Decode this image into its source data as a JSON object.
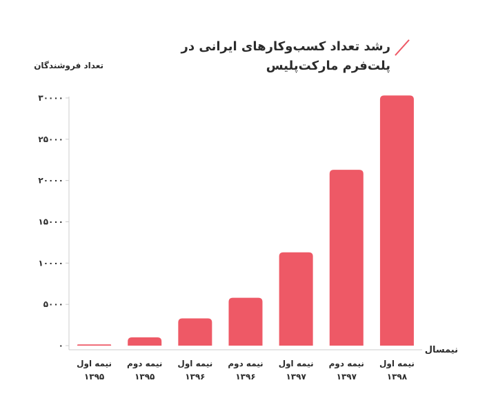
{
  "chart_data": {
    "type": "bar",
    "title": "رشد تعداد کسب‌وکارهای ایرانی در پلت‌فرم مارکت‌پلیس",
    "ylabel": "تعداد فروشندگان",
    "xlabel": "نیمسال",
    "categories": [
      [
        "نیمه اول",
        "۱۳۹۵"
      ],
      [
        "نیمه دوم",
        "۱۳۹۵"
      ],
      [
        "نیمه اول",
        "۱۳۹۶"
      ],
      [
        "نیمه دوم",
        "۱۳۹۶"
      ],
      [
        "نیمه اول",
        "۱۳۹۷"
      ],
      [
        "نیمه دوم",
        "۱۳۹۷"
      ],
      [
        "نیمه اول",
        "۱۳۹۸"
      ]
    ],
    "values": [
      150,
      1000,
      3300,
      5800,
      11300,
      21300,
      30300
    ],
    "ylim": [
      0,
      30000
    ],
    "yticks": [
      0,
      5000,
      10000,
      15000,
      20000,
      25000,
      30000
    ],
    "ytick_labels": [
      "۰",
      "۵۰۰۰",
      "۱۰۰۰۰",
      "۱۵۰۰۰",
      "۲۰۰۰۰",
      "۲۵۰۰۰",
      "۳۰۰۰۰"
    ],
    "grid": false,
    "bar_color": "#ee5966"
  }
}
